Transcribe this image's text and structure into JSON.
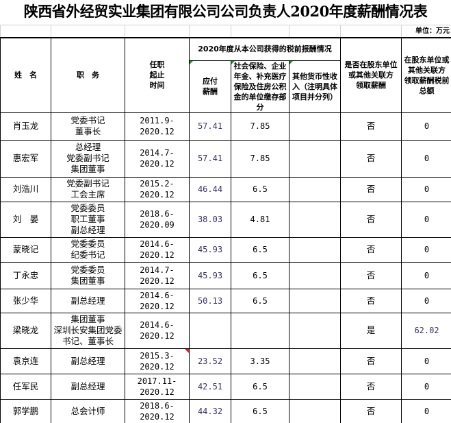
{
  "title": "陕西省外经贸实业集团有限公司公司负责人2020年度薪酬情况表",
  "unit": "单位：万元",
  "headers": {
    "name": "姓　名",
    "position": "职　务",
    "term": "任职\n起止\n时间",
    "group": "2020年度从本公司获得的税前报酬情况",
    "pay": "应付\n薪酬",
    "social": "社会保险、企业年金、补充医疗保险及住房公积金的单位缴存部分",
    "other": "其他货币性收入（注明具体项目并分列）",
    "related": "是否在股东单位或其他关联方\n领取薪酬",
    "related_total": "在股东单位或其他关联方\n领取薪酬税前总额"
  },
  "rows": [
    {
      "name": "肖玉龙",
      "position": "党委书记\n董事长",
      "term": "2011.9-\n2020.12",
      "pay": "57.41",
      "social": "7.85",
      "other": "",
      "related": "否",
      "total": "0"
    },
    {
      "name": "惠宏军",
      "position": "总经理\n党委副书记\n集团董事",
      "term": "2014.7-\n2020.12",
      "pay": "57.41",
      "social": "7.85",
      "other": "",
      "related": "否",
      "total": "0"
    },
    {
      "name": "刘浩川",
      "position": "党委副书记\n工会主席",
      "term": "2015.2-\n2020.12",
      "pay": "46.44",
      "social": "6.5",
      "other": "",
      "related": "否",
      "total": "0"
    },
    {
      "name": "刘　晏",
      "position": "党委委员\n职工董事\n副总经理",
      "term": "2018.6-\n2020.09",
      "pay": "38.03",
      "social": "4.81",
      "other": "",
      "related": "否",
      "total": "0"
    },
    {
      "name": "蒙晓记",
      "position": "党委委员\n纪委书记",
      "term": "2014.6-\n2020.12",
      "pay": "45.93",
      "social": "6.5",
      "other": "",
      "related": "否",
      "total": "0"
    },
    {
      "name": "丁永忠",
      "position": "党委委员\n集团董事",
      "term": "2014.7-\n2020.12",
      "pay": "45.93",
      "social": "6.5",
      "other": "",
      "related": "否",
      "total": "0"
    },
    {
      "name": "张少华",
      "position": "副总经理",
      "term": "2014.6-\n2020.12",
      "pay": "50.13",
      "social": "6.5",
      "other": "",
      "related": "否",
      "total": "0"
    },
    {
      "name": "梁晓龙",
      "position": "集团董事\n深圳长安集团党委书记、董事长",
      "term": "2014.6-\n2020.12",
      "pay": "",
      "social": "",
      "other": "",
      "related": "是",
      "total": "62.02"
    },
    {
      "name": "袁京连",
      "position": "副总经理",
      "term": "2015.3-\n2020.12",
      "pay": "23.52",
      "social": "3.35",
      "other": "",
      "related": "否",
      "total": "0"
    },
    {
      "name": "任军民",
      "position": "副总经理",
      "term": "2017.11-\n2020.12",
      "pay": "42.51",
      "social": "6.5",
      "other": "",
      "related": "否",
      "total": "0"
    },
    {
      "name": "郭学鹏",
      "position": "总会计师",
      "term": "2018.6-\n2020.12",
      "pay": "44.32",
      "social": "6.5",
      "other": "",
      "related": "否",
      "total": "0"
    }
  ]
}
